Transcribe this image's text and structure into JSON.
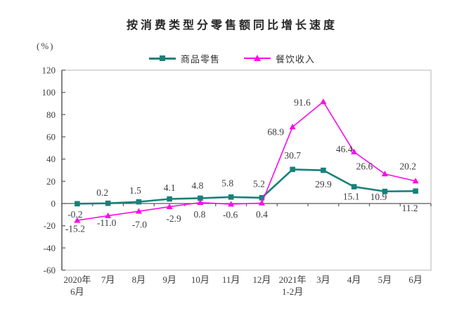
{
  "chart_data": {
    "type": "line",
    "title": "按消费类型分零售额同比增长速度",
    "unit_label": "(%)",
    "categories": [
      [
        "2020年",
        "6月"
      ],
      [
        "7月"
      ],
      [
        "8月"
      ],
      [
        "9月"
      ],
      [
        "10月"
      ],
      [
        "11月"
      ],
      [
        "12月"
      ],
      [
        "2021年",
        "1-2月"
      ],
      [
        "3月"
      ],
      [
        "4月"
      ],
      [
        "5月"
      ],
      [
        "6月"
      ]
    ],
    "series": [
      {
        "name": "商品零售",
        "color": "#17817a",
        "marker": "square",
        "values": [
          -0.2,
          0.2,
          1.5,
          4.1,
          4.8,
          5.8,
          5.2,
          30.7,
          29.9,
          15.1,
          10.9,
          11.2
        ],
        "labels": [
          "-0.2",
          "0.2",
          "1.5",
          "4.1",
          "4.8",
          "5.8",
          "5.2",
          "30.7",
          "29.9",
          "15.1",
          "10.9",
          "11.2"
        ],
        "label_offsets": [
          [
            -3,
            15
          ],
          [
            -8,
            -15
          ],
          [
            -5,
            -16
          ],
          [
            0,
            -16
          ],
          [
            -4,
            -18
          ],
          [
            -5,
            -20
          ],
          [
            -4,
            -20
          ],
          [
            0,
            -20
          ],
          [
            0,
            20
          ],
          [
            -4,
            14
          ],
          [
            -9,
            8
          ],
          [
            -8,
            24
          ]
        ]
      },
      {
        "name": "餐饮收入",
        "color": "#fb0ce8",
        "marker": "triangle",
        "values": [
          -15.2,
          -11.0,
          -7.0,
          -2.9,
          0.8,
          -0.6,
          0.4,
          68.9,
          91.6,
          46.4,
          26.6,
          20.2
        ],
        "labels": [
          "-15.2",
          "-11.0",
          "-7.0",
          "-2.9",
          "0.8",
          "-0.6",
          "0.4",
          "68.9",
          "91.6",
          "46.4",
          "26.6",
          "20.2"
        ],
        "label_offsets": [
          [
            -3,
            12
          ],
          [
            -2,
            10
          ],
          [
            1,
            19
          ],
          [
            6,
            17
          ],
          [
            -1,
            17
          ],
          [
            -1,
            15
          ],
          [
            0,
            16
          ],
          [
            -24,
            7
          ],
          [
            -30,
            1
          ],
          [
            -14,
            -4
          ],
          [
            -29,
            -11
          ],
          [
            -11,
            -21
          ]
        ]
      }
    ],
    "ylim": [
      -60,
      120
    ],
    "yticks": [
      120,
      100,
      80,
      60,
      40,
      20,
      0,
      -20,
      -40,
      -60
    ],
    "legend_position": "top-center",
    "grid": false,
    "colors": {
      "axis": "#595959",
      "border": "#c3c3c3",
      "label": "#3d3d3d"
    }
  }
}
